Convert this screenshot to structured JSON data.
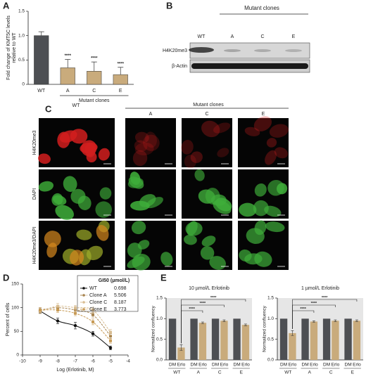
{
  "panel_labels": [
    "A",
    "B",
    "C",
    "D",
    "E"
  ],
  "blot": {
    "title": "Mutant clones",
    "lanes": [
      "WT",
      "A",
      "C",
      "E"
    ],
    "rows": [
      "H4K20me3",
      "β-Actin"
    ]
  },
  "imaging": {
    "group": "Mutant clones",
    "columns": [
      "WT",
      "A",
      "C",
      "E"
    ],
    "rows": [
      "H4K20me3",
      "DAPI",
      "H4K20me3/DAPI"
    ]
  },
  "chart_data": [
    {
      "type": "bar",
      "ylabel": [
        "Fold change of KMT5C levels",
        "relative to WT"
      ],
      "xlabel": "Mutant clones",
      "categories": [
        "WT",
        "A",
        "C",
        "E"
      ],
      "values": [
        1.0,
        0.34,
        0.27,
        0.2
      ],
      "errors": [
        0.08,
        0.17,
        0.19,
        0.15
      ],
      "colors": [
        "#4d4f53",
        "#c9ab7c",
        "#c9ab7c",
        "#c9ab7c"
      ],
      "annotations": [
        null,
        "****",
        "****",
        "****"
      ],
      "ylim": [
        0,
        1.5
      ],
      "yticks": [
        0,
        0.5,
        {
          "value": 1,
          "label": "1.0"
        },
        1.5
      ]
    },
    {
      "type": "scatter",
      "xlabel": "Log (Erlotinib, M)",
      "ylabel": "Percent of cells",
      "legend_title": "GI50 (µmol/L)",
      "xlim": [
        -10,
        -4
      ],
      "xticks": [
        -10,
        -9,
        -8,
        -7,
        -6,
        -5,
        -4
      ],
      "ylim": [
        0,
        150
      ],
      "yticks": [
        0,
        50,
        100,
        150
      ],
      "x": [
        -9,
        -8,
        -7,
        -6,
        -5
      ],
      "series": [
        {
          "name": "WT",
          "color": "#111111",
          "gi50": 0.698,
          "values": [
            93,
            72,
            62,
            45,
            15
          ],
          "errors": [
            5,
            6,
            7,
            5,
            4
          ]
        },
        {
          "name": "Clone A",
          "color": "#a8844f",
          "gi50": 5.506,
          "values": [
            95,
            100,
            95,
            85,
            40
          ],
          "errors": [
            5,
            5,
            6,
            5,
            5
          ]
        },
        {
          "name": "Clone C",
          "color": "#d9be93",
          "gi50": 8.187,
          "values": [
            92,
            103,
            100,
            95,
            48
          ],
          "errors": [
            5,
            6,
            5,
            6,
            6
          ]
        },
        {
          "name": "Clone E",
          "color": "#c79a55",
          "gi50": 3.773,
          "values": [
            95,
            95,
            88,
            70,
            30
          ],
          "errors": [
            5,
            5,
            5,
            6,
            5
          ]
        }
      ]
    },
    {
      "type": "grouped_bar",
      "title": "10 µmol/L Erlotinib",
      "ylabel": "Normalized confluency",
      "categories": [
        "WT",
        "A",
        "C",
        "E"
      ],
      "series": [
        {
          "name": "DM",
          "color": "#4d4f53",
          "values": [
            1,
            1,
            1,
            1
          ]
        },
        {
          "name": "Erlo",
          "color": "#c9ab7c",
          "values": [
            0.3,
            0.9,
            0.95,
            0.85
          ],
          "errors": [
            0.07,
            0.02,
            0.02,
            0.02
          ]
        }
      ],
      "annotations": [
        "****",
        "****",
        "****"
      ],
      "ylim": [
        0,
        1.5
      ],
      "yticks": [
        {
          "value": 0,
          "label": "0.0"
        },
        0.5,
        {
          "value": 1,
          "label": "1.0"
        },
        1.5
      ]
    },
    {
      "type": "grouped_bar",
      "title": "1 µmol/L Erlotinib",
      "ylabel": "Normalized confluency",
      "categories": [
        "WT",
        "A",
        "C",
        "E"
      ],
      "series": [
        {
          "name": "DM",
          "color": "#4d4f53",
          "values": [
            1,
            1,
            1,
            1
          ]
        },
        {
          "name": "Erlo",
          "color": "#c9ab7c",
          "values": [
            0.65,
            0.93,
            0.95,
            0.95
          ],
          "errors": [
            0.06,
            0.02,
            0.02,
            0.02
          ]
        }
      ],
      "annotations": [
        "****",
        "****",
        "****"
      ],
      "ylim": [
        0,
        1.5
      ],
      "yticks": [
        {
          "value": 0,
          "label": "0.0"
        },
        0.5,
        {
          "value": 1,
          "label": "1.0"
        },
        1.5
      ]
    }
  ]
}
